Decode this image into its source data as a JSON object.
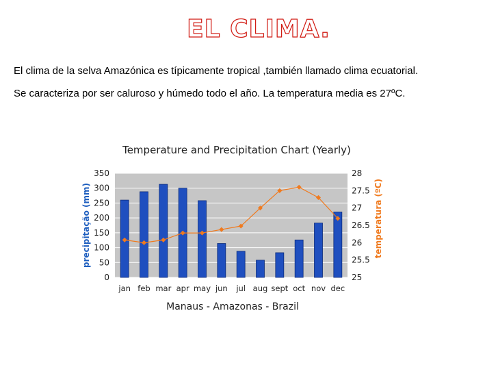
{
  "slide": {
    "title": "EL CLIMA.",
    "paragraphs": [
      "El clima de la selva Amazónica es típicamente tropical ,también llamado clima ecuatorial.",
      "Se caracteriza por ser caluroso y húmedo todo el año. La temperatura media es 27ºC."
    ]
  },
  "colors": {
    "title_outline": "#d11c14",
    "bars": "#1f4fbf",
    "temperature_line": "#f07a1e",
    "plot_background": "#c6c6c6",
    "left_axis_label": "#1f5fbf",
    "right_axis_label": "#f07a1e"
  },
  "chart_data": {
    "type": "bar",
    "title": "Temperature and Precipitation Chart (Yearly)",
    "subtitle": "Manaus - Amazonas - Brazil",
    "categories": [
      "jan",
      "feb",
      "mar",
      "apr",
      "may",
      "jun",
      "jul",
      "aug",
      "sept",
      "oct",
      "nov",
      "dec"
    ],
    "grid": true,
    "legend": "none",
    "y_left": {
      "label": "precipitação (mm)",
      "range": [
        0,
        350
      ],
      "ticks": [
        "0",
        "50",
        "100",
        "150",
        "200",
        "250",
        "300",
        "350"
      ]
    },
    "y_right": {
      "label": "temperatura (ºC)",
      "range": [
        25,
        28
      ],
      "ticks": [
        "25",
        "25.5",
        "26",
        "26.5",
        "27",
        "27.5",
        "28"
      ]
    },
    "series": [
      {
        "type": "bar",
        "axis": "left",
        "values": [
          260,
          288,
          313,
          300,
          258,
          114,
          88,
          58,
          83,
          126,
          183,
          220
        ]
      },
      {
        "type": "line",
        "axis": "right",
        "values": [
          26.08,
          26.0,
          26.08,
          26.28,
          26.28,
          26.38,
          26.48,
          27.0,
          27.5,
          27.6,
          27.3,
          26.7
        ]
      }
    ]
  }
}
